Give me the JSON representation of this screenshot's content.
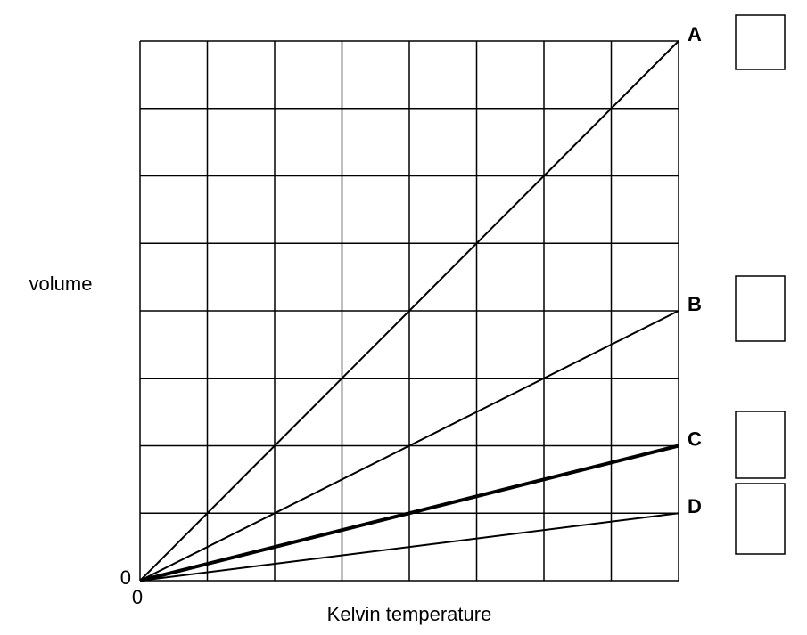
{
  "chart_data": {
    "type": "line",
    "xlabel": "Kelvin temperature",
    "ylabel": "volume",
    "x": [
      0,
      8
    ],
    "xlim": [
      0,
      8
    ],
    "ylim": [
      0,
      8
    ],
    "xticks": [
      0
    ],
    "yticks": [
      0
    ],
    "xgrid": [
      1,
      2,
      3,
      4,
      5,
      6,
      7,
      8
    ],
    "ygrid": [
      1,
      2,
      3,
      4,
      5,
      6,
      7,
      8
    ],
    "grid": true,
    "series": [
      {
        "name": "A",
        "color": "#000000",
        "width": 2,
        "values": [
          0,
          8
        ]
      },
      {
        "name": "B",
        "color": "#000000",
        "width": 2,
        "values": [
          0,
          4
        ]
      },
      {
        "name": "C",
        "color": "#000000",
        "width": 4,
        "values": [
          0,
          2
        ]
      },
      {
        "name": "D",
        "color": "#000000",
        "width": 2,
        "values": [
          0,
          1
        ]
      }
    ]
  }
}
